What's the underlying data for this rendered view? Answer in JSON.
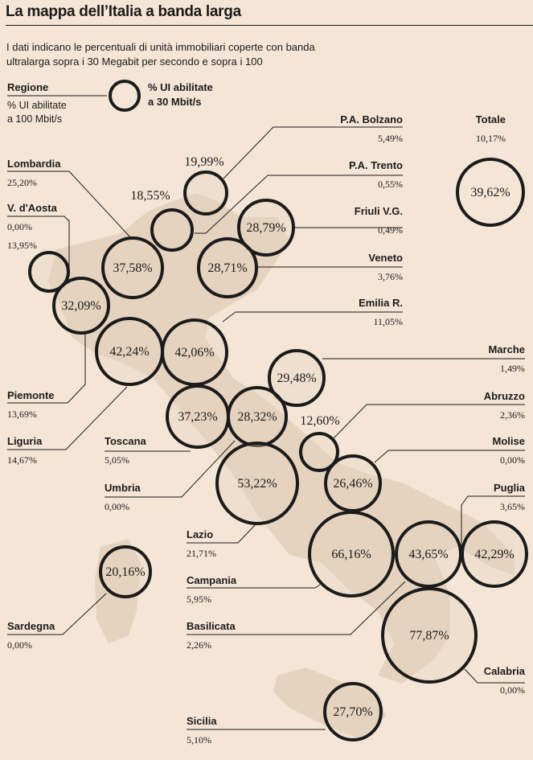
{
  "title": "La mappa dell’Italia a banda larga",
  "subtitle_line1": "I dati indicano le percentuali di unità immobiliari coperte con banda",
  "subtitle_line2": "ultralarga sopra i 30 Megabit per secondo e sopra i 100",
  "legend": {
    "region_label": "Regione",
    "left_line1": "% UI abilitate",
    "left_line2": "a 100 Mbit/s",
    "right_line1": "% UI abilitate",
    "right_line2": "a 30 Mbit/s"
  },
  "colors": {
    "background": "#f5e5d6",
    "land": "#e5d3bf",
    "ink": "#1b1b1b"
  },
  "chart_data": {
    "type": "bubble-map",
    "title": "La mappa dell’Italia a banda larga",
    "series": [
      {
        "name": "% UI abilitate a 30 Mbit/s",
        "encoding": "circle"
      },
      {
        "name": "% UI abilitate a 100 Mbit/s",
        "encoding": "label"
      }
    ],
    "total": {
      "region": "Totale",
      "pct_30": "39,62%",
      "pct_100": "10,17%"
    },
    "regions": [
      {
        "region": "P.A. Bolzano",
        "pct_30": "19,99%",
        "pct_100": "5,49%"
      },
      {
        "region": "Lombardia",
        "pct_30": "37,58%",
        "pct_100": "25,20%"
      },
      {
        "region": "P.A. Trento",
        "pct_30": "18,55%",
        "pct_100": "0,55%"
      },
      {
        "region": "V. d'Aosta",
        "pct_30": "13,95%",
        "pct_100": "0,00%"
      },
      {
        "region": "Friuli V.G.",
        "pct_30": "28,79%",
        "pct_100": "0,49%"
      },
      {
        "region": "Veneto",
        "pct_30": "28,71%",
        "pct_100": "3,76%"
      },
      {
        "region": "Piemonte",
        "pct_30": "32,09%",
        "pct_100": "13,69%"
      },
      {
        "region": "Emilia R.",
        "pct_30": "42,06%",
        "pct_100": "11,05%"
      },
      {
        "region": "Liguria",
        "pct_30": "42,24%",
        "pct_100": "14,67%"
      },
      {
        "region": "Marche",
        "pct_30": "29,48%",
        "pct_100": "1,49%"
      },
      {
        "region": "Toscana",
        "pct_30": "37,23%",
        "pct_100": "5,05%"
      },
      {
        "region": "Umbria",
        "pct_30": "28,32%",
        "pct_100": "0,00%"
      },
      {
        "region": "Abruzzo",
        "pct_30": "12,60%",
        "pct_100": "2,36%"
      },
      {
        "region": "Molise",
        "pct_30": "26,46%",
        "pct_100": "0,00%"
      },
      {
        "region": "Lazio",
        "pct_30": "53,22%",
        "pct_100": "21,71%"
      },
      {
        "region": "Puglia",
        "pct_30": "42,29%",
        "pct_100": "3,65%"
      },
      {
        "region": "Campania",
        "pct_30": "66,16%",
        "pct_100": "5,95%"
      },
      {
        "region": "Basilicata",
        "pct_30": "43,65%",
        "pct_100": "2,26%"
      },
      {
        "region": "Sardegna",
        "pct_30": "20,16%",
        "pct_100": "0,00%"
      },
      {
        "region": "Calabria",
        "pct_30": "77,87%",
        "pct_100": "0,00%"
      },
      {
        "region": "Sicilia",
        "pct_30": "27,70%",
        "pct_100": "5,10%"
      }
    ]
  }
}
